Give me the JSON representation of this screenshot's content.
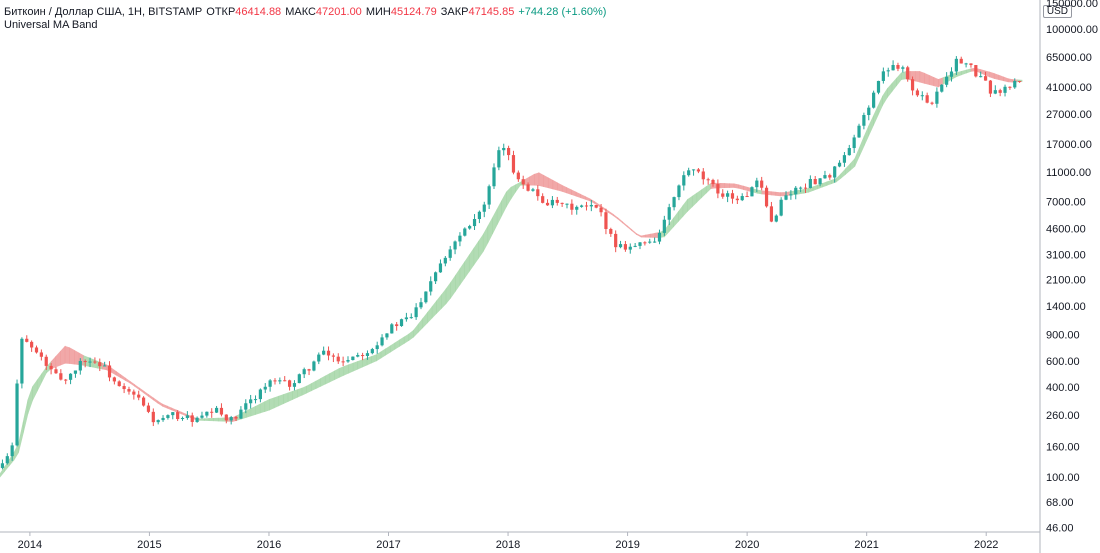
{
  "header": {
    "symbol": "Биткоин / Доллар США, 1Н, BITSTAMP",
    "open_label": "ОТКР",
    "open": "46414.88",
    "high_label": "МАКС",
    "high": "47201.00",
    "low_label": "МИН",
    "low": "45124.79",
    "close_label": "ЗАКР",
    "close": "47145.85",
    "change": "+744.28 (+1.60%)",
    "indicator": "Universal MA Band",
    "currency_badge": "USD"
  },
  "colors": {
    "up_candle": "#26a69a",
    "down_candle": "#ef5350",
    "band_bull": "#a5d6a7",
    "band_bear": "#ef9a9a",
    "axis_line": "#b2b5be"
  },
  "chart_data": {
    "type": "candlestick",
    "title": "Биткоин / Доллар США, 1Н, BITSTAMP",
    "y_scale": "log",
    "ylim": [
      42,
      150000
    ],
    "y_ticks": [
      "150000.00",
      "100000.00",
      "65000.00",
      "41000.00",
      "27000.00",
      "17000.00",
      "11000.00",
      "7000.00",
      "4600.00",
      "3100.00",
      "2100.00",
      "1400.00",
      "900.00",
      "600.00",
      "400.00",
      "260.00",
      "160.00",
      "100.00",
      "68.00",
      "46.00"
    ],
    "x_ticks": [
      "2014",
      "2015",
      "2016",
      "2017",
      "2018",
      "2019",
      "2020",
      "2021",
      "2022"
    ],
    "x_range": [
      2013.75,
      2022.45
    ],
    "price_path": [
      {
        "x": 2013.75,
        "y": 115
      },
      {
        "x": 2013.85,
        "y": 150
      },
      {
        "x": 2013.92,
        "y": 900
      },
      {
        "x": 2014.0,
        "y": 750
      },
      {
        "x": 2014.1,
        "y": 620
      },
      {
        "x": 2014.2,
        "y": 480
      },
      {
        "x": 2014.3,
        "y": 450
      },
      {
        "x": 2014.45,
        "y": 620
      },
      {
        "x": 2014.6,
        "y": 570
      },
      {
        "x": 2014.75,
        "y": 390
      },
      {
        "x": 2014.9,
        "y": 340
      },
      {
        "x": 2015.05,
        "y": 230
      },
      {
        "x": 2015.2,
        "y": 260
      },
      {
        "x": 2015.4,
        "y": 240
      },
      {
        "x": 2015.55,
        "y": 280
      },
      {
        "x": 2015.7,
        "y": 235
      },
      {
        "x": 2015.85,
        "y": 330
      },
      {
        "x": 2016.0,
        "y": 430
      },
      {
        "x": 2016.2,
        "y": 420
      },
      {
        "x": 2016.45,
        "y": 680
      },
      {
        "x": 2016.6,
        "y": 600
      },
      {
        "x": 2016.85,
        "y": 720
      },
      {
        "x": 2017.0,
        "y": 980
      },
      {
        "x": 2017.2,
        "y": 1200
      },
      {
        "x": 2017.4,
        "y": 2500
      },
      {
        "x": 2017.6,
        "y": 4300
      },
      {
        "x": 2017.8,
        "y": 6500
      },
      {
        "x": 2017.95,
        "y": 17500
      },
      {
        "x": 2018.05,
        "y": 11000
      },
      {
        "x": 2018.15,
        "y": 9000
      },
      {
        "x": 2018.3,
        "y": 7000
      },
      {
        "x": 2018.5,
        "y": 6400
      },
      {
        "x": 2018.75,
        "y": 6300
      },
      {
        "x": 2018.9,
        "y": 3600
      },
      {
        "x": 2019.05,
        "y": 3500
      },
      {
        "x": 2019.25,
        "y": 4000
      },
      {
        "x": 2019.4,
        "y": 7800
      },
      {
        "x": 2019.5,
        "y": 11500
      },
      {
        "x": 2019.6,
        "y": 10500
      },
      {
        "x": 2019.75,
        "y": 8200
      },
      {
        "x": 2019.95,
        "y": 7200
      },
      {
        "x": 2020.1,
        "y": 9500
      },
      {
        "x": 2020.2,
        "y": 5000
      },
      {
        "x": 2020.3,
        "y": 7500
      },
      {
        "x": 2020.5,
        "y": 9200
      },
      {
        "x": 2020.7,
        "y": 10700
      },
      {
        "x": 2020.85,
        "y": 15000
      },
      {
        "x": 2021.0,
        "y": 29000
      },
      {
        "x": 2021.1,
        "y": 45000
      },
      {
        "x": 2021.2,
        "y": 58000
      },
      {
        "x": 2021.3,
        "y": 57000
      },
      {
        "x": 2021.4,
        "y": 36000
      },
      {
        "x": 2021.55,
        "y": 33000
      },
      {
        "x": 2021.65,
        "y": 47000
      },
      {
        "x": 2021.75,
        "y": 61000
      },
      {
        "x": 2021.85,
        "y": 57000
      },
      {
        "x": 2021.95,
        "y": 47000
      },
      {
        "x": 2022.05,
        "y": 38000
      },
      {
        "x": 2022.15,
        "y": 39000
      },
      {
        "x": 2022.25,
        "y": 44000
      },
      {
        "x": 2022.3,
        "y": 47145
      }
    ],
    "band_path": [
      {
        "x": 2013.75,
        "y": 105,
        "z": 100
      },
      {
        "x": 2013.9,
        "y": 160,
        "z": 140
      },
      {
        "x": 2014.0,
        "y": 380,
        "z": 300
      },
      {
        "x": 2014.15,
        "y": 560,
        "z": 520
      },
      {
        "x": 2014.3,
        "y": 760,
        "z": 580
      },
      {
        "x": 2014.45,
        "y": 650,
        "z": 560
      },
      {
        "x": 2014.65,
        "y": 560,
        "z": 520
      },
      {
        "x": 2014.85,
        "y": 430,
        "z": 420
      },
      {
        "x": 2015.1,
        "y": 310,
        "z": 300
      },
      {
        "x": 2015.4,
        "y": 245,
        "z": 240
      },
      {
        "x": 2015.7,
        "y": 250,
        "z": 235
      },
      {
        "x": 2016.0,
        "y": 330,
        "z": 280
      },
      {
        "x": 2016.3,
        "y": 400,
        "z": 360
      },
      {
        "x": 2016.6,
        "y": 540,
        "z": 470
      },
      {
        "x": 2016.9,
        "y": 660,
        "z": 600
      },
      {
        "x": 2017.2,
        "y": 940,
        "z": 850
      },
      {
        "x": 2017.5,
        "y": 1900,
        "z": 1500
      },
      {
        "x": 2017.8,
        "y": 4300,
        "z": 3300
      },
      {
        "x": 2018.0,
        "y": 8500,
        "z": 6800
      },
      {
        "x": 2018.1,
        "y": 9400,
        "z": 9000
      },
      {
        "x": 2018.25,
        "y": 11000,
        "z": 9000
      },
      {
        "x": 2018.45,
        "y": 9000,
        "z": 8200
      },
      {
        "x": 2018.7,
        "y": 7200,
        "z": 7000
      },
      {
        "x": 2018.9,
        "y": 5600,
        "z": 5500
      },
      {
        "x": 2019.1,
        "y": 4100,
        "z": 4050
      },
      {
        "x": 2019.3,
        "y": 4400,
        "z": 4000
      },
      {
        "x": 2019.5,
        "y": 7200,
        "z": 6000
      },
      {
        "x": 2019.7,
        "y": 9300,
        "z": 8600
      },
      {
        "x": 2019.9,
        "y": 9200,
        "z": 8700
      },
      {
        "x": 2020.1,
        "y": 8300,
        "z": 7900
      },
      {
        "x": 2020.3,
        "y": 8000,
        "z": 7600
      },
      {
        "x": 2020.5,
        "y": 8500,
        "z": 8000
      },
      {
        "x": 2020.75,
        "y": 10000,
        "z": 9500
      },
      {
        "x": 2020.9,
        "y": 13500,
        "z": 12000
      },
      {
        "x": 2021.0,
        "y": 21000,
        "z": 18000
      },
      {
        "x": 2021.15,
        "y": 38000,
        "z": 33000
      },
      {
        "x": 2021.3,
        "y": 52000,
        "z": 47000
      },
      {
        "x": 2021.45,
        "y": 52000,
        "z": 44000
      },
      {
        "x": 2021.6,
        "y": 46000,
        "z": 41000
      },
      {
        "x": 2021.75,
        "y": 51000,
        "z": 48000
      },
      {
        "x": 2021.9,
        "y": 55000,
        "z": 53000
      },
      {
        "x": 2022.05,
        "y": 51000,
        "z": 47000
      },
      {
        "x": 2022.2,
        "y": 46000,
        "z": 44000
      },
      {
        "x": 2022.3,
        "y": 45500,
        "z": 44500
      }
    ]
  }
}
